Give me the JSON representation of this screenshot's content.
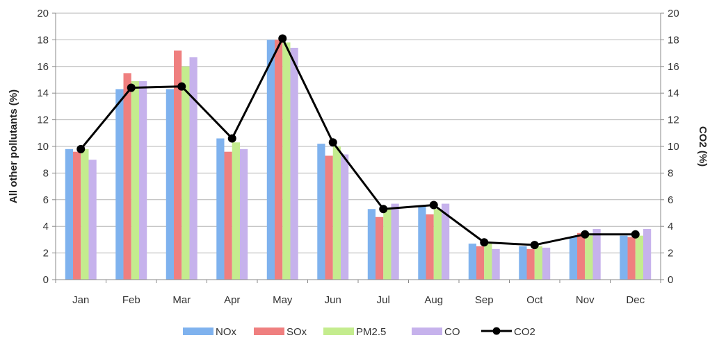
{
  "chart_data": {
    "type": "bar",
    "categories": [
      "Jan",
      "Feb",
      "Mar",
      "Apr",
      "May",
      "Jun",
      "Jul",
      "Aug",
      "Sep",
      "Oct",
      "Nov",
      "Dec"
    ],
    "series": [
      {
        "name": "NOx",
        "type": "bar",
        "axis": "left",
        "color": "#7fb2ee",
        "values": [
          9.8,
          14.3,
          14.3,
          10.6,
          18.0,
          10.2,
          5.3,
          5.5,
          2.7,
          2.5,
          3.2,
          3.3
        ]
      },
      {
        "name": "SOx",
        "type": "bar",
        "axis": "left",
        "color": "#ef7f7f",
        "values": [
          9.6,
          15.5,
          17.2,
          9.6,
          18.0,
          9.3,
          4.7,
          4.9,
          2.5,
          2.3,
          3.5,
          3.2
        ]
      },
      {
        "name": "PM2.5",
        "type": "bar",
        "axis": "left",
        "color": "#c4ec8e",
        "values": [
          9.8,
          14.9,
          16.0,
          10.3,
          17.8,
          10.0,
          5.3,
          5.3,
          2.7,
          2.5,
          3.3,
          3.3
        ]
      },
      {
        "name": "CO",
        "type": "bar",
        "axis": "left",
        "color": "#c6b2ec",
        "values": [
          9.0,
          14.9,
          16.7,
          9.8,
          17.4,
          9.4,
          5.7,
          5.7,
          2.3,
          2.4,
          3.8,
          3.8
        ]
      },
      {
        "name": "CO2",
        "type": "line",
        "axis": "right",
        "color": "#000000",
        "values": [
          9.8,
          14.4,
          14.5,
          10.6,
          18.1,
          10.3,
          5.3,
          5.6,
          2.8,
          2.6,
          3.4,
          3.4
        ]
      }
    ],
    "ylabel": "All other pollutants (%)",
    "y2label": "CO2 (%)",
    "ylim": [
      0,
      20
    ],
    "y2lim": [
      0,
      20
    ],
    "yticks": [
      "0",
      "2",
      "4",
      "6",
      "8",
      "10",
      "12",
      "14",
      "16",
      "18",
      "20"
    ],
    "grid": true,
    "legend_position": "bottom"
  }
}
